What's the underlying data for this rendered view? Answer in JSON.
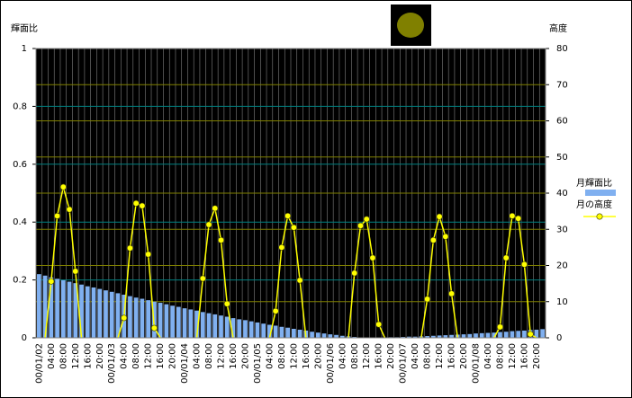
{
  "chart_data": {
    "type": "bar",
    "y_label": "輝面比",
    "y2_label": "高度",
    "categories": [
      "00/01/02",
      null,
      "04:00",
      null,
      "08:00",
      null,
      "12:00",
      null,
      "16:00",
      null,
      "20:00",
      null,
      "00/01/03",
      null,
      "04:00",
      null,
      "08:00",
      null,
      "12:00",
      null,
      "16:00",
      null,
      "20:00",
      null,
      "00/01/04",
      null,
      "04:00",
      null,
      "08:00",
      null,
      "12:00",
      null,
      "16:00",
      null,
      "20:00",
      null,
      "00/01/05",
      null,
      "04:00",
      null,
      "08:00",
      null,
      "12:00",
      null,
      "16:00",
      null,
      "20:00",
      null,
      "00/01/06",
      null,
      "04:00",
      null,
      "08:00",
      null,
      "12:00",
      null,
      "16:00",
      null,
      "20:00",
      null,
      "00/01/07",
      null,
      "04:00",
      null,
      "08:00",
      null,
      "12:00",
      null,
      "16:00",
      null,
      "20:00",
      null,
      "00/01/08",
      null,
      "04:00",
      null,
      "08:00",
      null,
      "12:00",
      null,
      "16:00",
      null,
      "20:00",
      null
    ],
    "series": [
      {
        "name": "月輝面比",
        "type": "bar",
        "axis": "y",
        "color": "#80b0f0",
        "values": [
          0.22,
          0.215,
          0.209,
          0.204,
          0.199,
          0.194,
          0.189,
          0.184,
          0.178,
          0.174,
          0.169,
          0.164,
          0.159,
          0.154,
          0.149,
          0.144,
          0.139,
          0.135,
          0.13,
          0.125,
          0.121,
          0.116,
          0.111,
          0.107,
          0.102,
          0.098,
          0.094,
          0.089,
          0.085,
          0.081,
          0.077,
          0.073,
          0.068,
          0.064,
          0.061,
          0.057,
          0.053,
          0.049,
          0.045,
          0.042,
          0.038,
          0.035,
          0.031,
          0.028,
          0.025,
          0.021,
          0.018,
          0.015,
          0.012,
          0.01,
          0.007,
          0.005,
          0.003,
          0.001,
          0,
          0,
          0.001,
          0.001,
          0.002,
          0.002,
          0.003,
          0.004,
          0.004,
          0.005,
          0.006,
          0.007,
          0.008,
          0.009,
          0.01,
          0.011,
          0.012,
          0.013,
          0.015,
          0.016,
          0.017,
          0.018,
          0.02,
          0.021,
          0.023,
          0.024,
          0.025,
          0.027,
          0.028,
          0.03
        ]
      },
      {
        "name": "月の高度",
        "type": "line",
        "axis": "y2",
        "color": "#ffff00",
        "values": [
          null,
          0,
          15.6,
          33.7,
          41.7,
          35.5,
          18.4,
          0,
          null,
          null,
          null,
          null,
          null,
          0,
          5.5,
          24.8,
          37.2,
          36.5,
          23.1,
          2.7,
          0,
          null,
          null,
          null,
          null,
          null,
          0,
          16.4,
          31.3,
          35.8,
          27,
          9.4,
          0,
          null,
          null,
          null,
          null,
          null,
          0,
          7.4,
          25,
          33.7,
          30.5,
          15.9,
          0,
          null,
          null,
          null,
          null,
          null,
          null,
          0,
          17.9,
          31,
          32.8,
          22.1,
          3.7,
          0,
          null,
          null,
          null,
          null,
          null,
          0,
          10.7,
          27,
          33.5,
          28,
          12.2,
          0,
          null,
          null,
          null,
          null,
          null,
          0,
          3,
          22.1,
          33.7,
          33,
          20.3,
          1,
          0,
          null
        ]
      }
    ],
    "ylim": [
      0,
      1
    ],
    "yticks": [
      0,
      0.2,
      0.4,
      0.6,
      0.8,
      1
    ],
    "y2lim": [
      0,
      80
    ],
    "y2ticks": [
      0,
      10,
      20,
      30,
      40,
      50,
      60,
      70,
      80
    ],
    "grid": true,
    "legend": "right"
  }
}
